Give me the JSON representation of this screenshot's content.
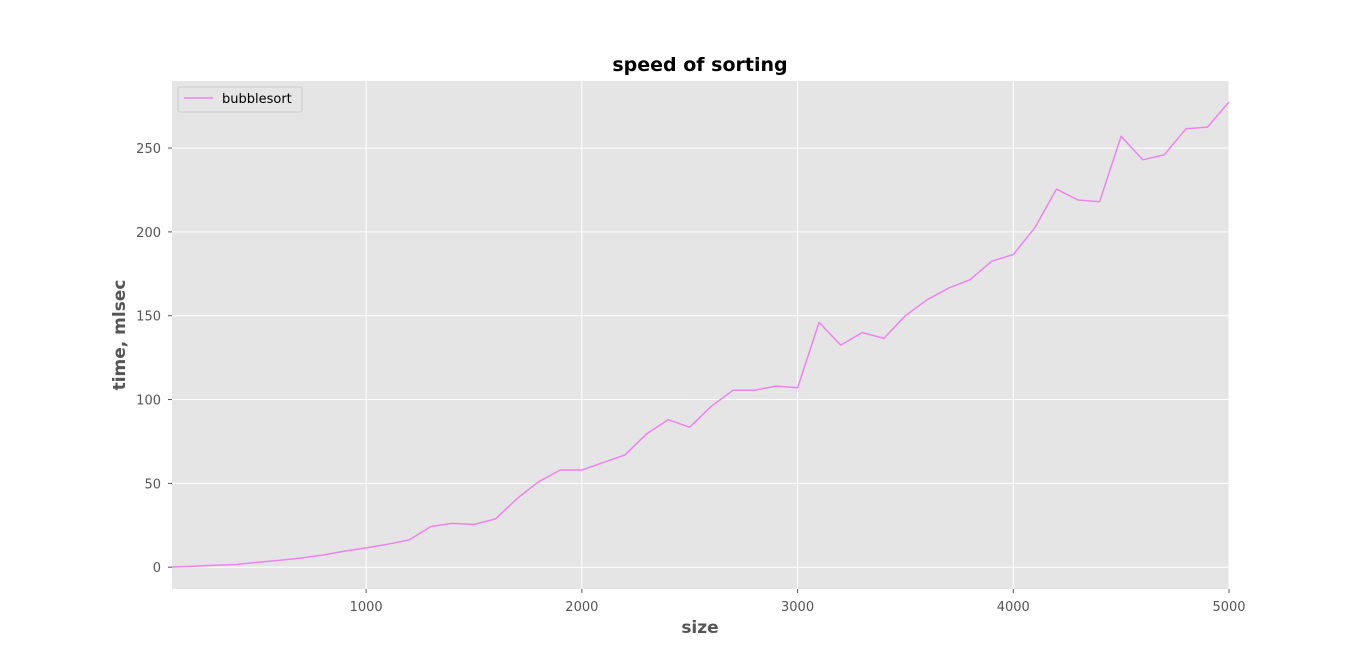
{
  "chart_data": {
    "type": "line",
    "title": "speed of sorting",
    "xlabel": "size",
    "ylabel": "time, mlsec",
    "xlim": [
      100,
      5000
    ],
    "ylim": [
      -13,
      290
    ],
    "xticks": [
      1000,
      2000,
      3000,
      4000,
      5000
    ],
    "yticks": [
      0,
      50,
      100,
      150,
      200,
      250
    ],
    "grid": true,
    "legend": "upper-left",
    "background": "#e5e5e5",
    "grid_color": "#ffffff",
    "series": [
      {
        "name": "bubblesort",
        "color": "#ee82ee",
        "x": [
          100,
          200,
          300,
          400,
          500,
          600,
          700,
          800,
          900,
          1000,
          1100,
          1200,
          1300,
          1400,
          1500,
          1600,
          1700,
          1800,
          1900,
          2000,
          2100,
          2200,
          2300,
          2400,
          2500,
          2600,
          2700,
          2800,
          2900,
          3000,
          3100,
          3200,
          3300,
          3400,
          3500,
          3600,
          3700,
          3800,
          3900,
          4000,
          4100,
          4200,
          4300,
          4400,
          4500,
          4600,
          4700,
          4800,
          4900,
          5000
        ],
        "y": [
          0.1,
          0.6,
          1.2,
          1.6,
          3.0,
          4.1,
          5.5,
          7.3,
          9.6,
          11.5,
          13.7,
          16.3,
          24.3,
          26.1,
          25.5,
          28.8,
          41.0,
          51.0,
          58.0,
          58.0,
          62.5,
          67.0,
          79.5,
          88.0,
          83.5,
          96.0,
          105.5,
          105.5,
          108.0,
          107.0,
          146.0,
          132.5,
          140.0,
          136.5,
          150.0,
          159.5,
          166.5,
          171.5,
          182.5,
          186.5,
          202.5,
          225.5,
          219.0,
          218.0,
          257.0,
          243.0,
          246.0,
          261.5,
          262.5,
          277.5
        ]
      }
    ]
  }
}
